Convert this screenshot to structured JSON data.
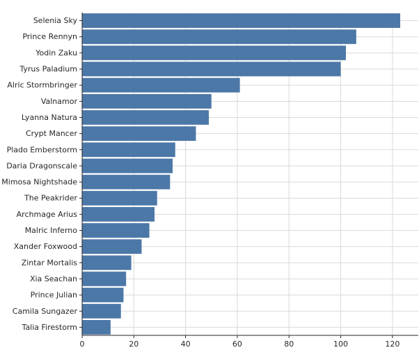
{
  "chart_data": {
    "type": "bar",
    "orientation": "horizontal",
    "categories": [
      "Selenia Sky",
      "Prince Rennyn",
      "Yodin Zaku",
      "Tyrus Paladium",
      "Alric Stormbringer",
      "Valnamor",
      "Lyanna Natura",
      "Crypt Mancer",
      "Plado Emberstorm",
      "Daria Dragonscale",
      "Mimosa Nightshade",
      "The Peakrider",
      "Archmage Arius",
      "Malric Inferno",
      "Xander Foxwood",
      "Zintar Mortalis",
      "Xia Seachan",
      "Prince Julian",
      "Camila Sungazer",
      "Talia Firestorm"
    ],
    "values": [
      123,
      106,
      102,
      100,
      61,
      50,
      49,
      44,
      36,
      35,
      34,
      29,
      28,
      26,
      23,
      19,
      17,
      16,
      15,
      11
    ],
    "xlim": [
      0,
      130
    ],
    "xticks": [
      0,
      20,
      40,
      60,
      80,
      100,
      120
    ],
    "grid": true,
    "bar_color": "#4c78a8",
    "title": "",
    "xlabel": "",
    "ylabel": ""
  }
}
